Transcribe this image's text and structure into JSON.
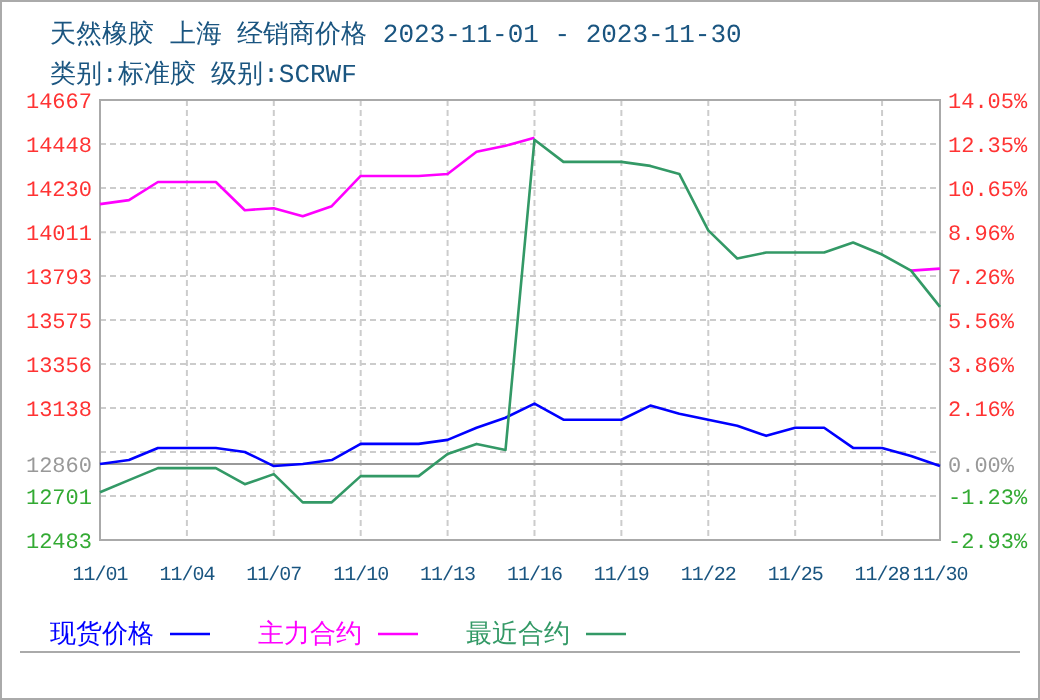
{
  "chart_data": {
    "type": "line",
    "title": "天然橡胶 上海 经销商价格 2023-11-01 - 2023-11-30",
    "subtitle": "类别:标准胶 级别:SCRWF",
    "categories": [
      "11/01",
      null,
      null,
      "11/04",
      null,
      null,
      "11/07",
      null,
      null,
      "11/10",
      null,
      null,
      "11/13",
      null,
      null,
      "11/16",
      null,
      null,
      "11/19",
      null,
      null,
      "11/22",
      null,
      null,
      "11/25",
      null,
      null,
      "11/28",
      null,
      "11/30"
    ],
    "series": [
      {
        "name": "现货价格",
        "color": "#0000ff",
        "values": [
          12860,
          12880,
          12940,
          12940,
          12940,
          12920,
          12850,
          12860,
          12880,
          12960,
          12960,
          12960,
          12980,
          13040,
          13090,
          13160,
          13080,
          13080,
          13080,
          13150,
          13110,
          13080,
          13050,
          13000,
          13040,
          13040,
          12940,
          12940,
          12900,
          12850
        ]
      },
      {
        "name": "主力合约",
        "color": "#ff00ff",
        "values": [
          14150,
          14170,
          14260,
          14260,
          14260,
          14120,
          14130,
          14090,
          14140,
          14290,
          14290,
          14290,
          14300,
          14410,
          14440,
          14480,
          null,
          null,
          null,
          null,
          null,
          null,
          null,
          null,
          null,
          null,
          null,
          null,
          13820,
          13830
        ]
      },
      {
        "name": "最近合约",
        "color": "#339966",
        "values": [
          12720,
          12780,
          12840,
          12840,
          12840,
          12760,
          12810,
          12670,
          12670,
          12800,
          12800,
          12800,
          12910,
          12960,
          12930,
          14470,
          14360,
          14360,
          14360,
          14340,
          14300,
          14020,
          13880,
          13910,
          13910,
          13910,
          13960,
          13900,
          13820,
          13640
        ]
      }
    ],
    "ylim": [
      12483,
      14667
    ],
    "yticks": [
      12483,
      12701,
      {
        "value": 12920,
        "label": null
      },
      13138,
      13356,
      13575,
      13793,
      14011,
      14230,
      14448,
      14667
    ],
    "y2lim": [
      -2.93,
      14.05
    ],
    "y2ticks": [
      {
        "value": -2.93,
        "label": "-2.93%"
      },
      {
        "value": -1.23,
        "label": "-1.23%"
      },
      {
        "value": 0,
        "label": "0.00%"
      },
      {
        "value": 2.16,
        "label": "2.16%"
      },
      {
        "value": 3.86,
        "label": "3.86%"
      },
      {
        "value": 5.56,
        "label": "5.56%"
      },
      {
        "value": 7.26,
        "label": "7.26%"
      },
      {
        "value": 8.96,
        "label": "8.96%"
      },
      {
        "value": 10.65,
        "label": "10.65%"
      },
      {
        "value": 12.35,
        "label": "12.35%"
      },
      {
        "value": 14.05,
        "label": "14.05%"
      }
    ],
    "ref_lines": [
      {
        "axis": "y",
        "value": 12860,
        "label": "12860",
        "color": "#999999"
      }
    ],
    "grid": true,
    "legend": "bottom",
    "marker": "none",
    "line_style": "solid"
  }
}
